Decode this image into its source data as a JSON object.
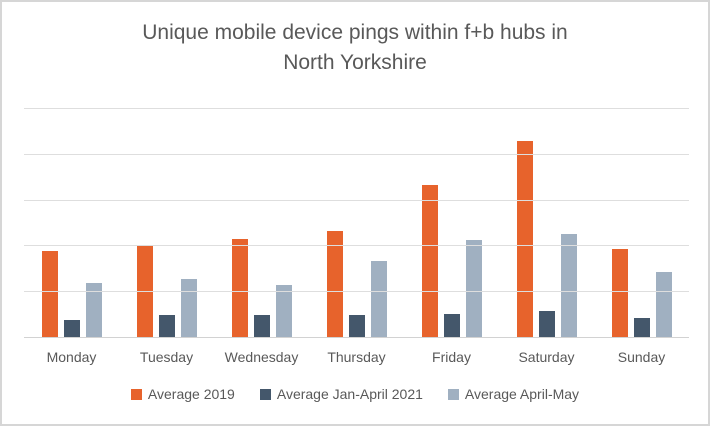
{
  "window": {
    "background": "#FFFFFF",
    "border_color": "#D6D6D6"
  },
  "title": {
    "text": "Unique mobile device pings within f+b hubs in North Yorkshire",
    "lines": [
      "Unique mobile device pings within f+b hubs in",
      "North Yorkshire"
    ],
    "color": "#595959"
  },
  "axis": {
    "label_color": "#595959",
    "gridline_color": "#DEDEDE",
    "axis_line_color": "#D2D2D2"
  },
  "chart_data": {
    "type": "bar",
    "title": "Unique mobile device pings within f+b hubs in North Yorkshire",
    "categories": [
      "Monday",
      "Tuesday",
      "Wednesday",
      "Thursday",
      "Friday",
      "Saturday",
      "Sunday"
    ],
    "series": [
      {
        "name": "Average 2019",
        "color": "#E7632C",
        "values": [
          1.88,
          1.98,
          2.14,
          2.31,
          3.31,
          4.28,
          1.93
        ]
      },
      {
        "name": "Average Jan-April 2021",
        "color": "#44576B",
        "values": [
          0.37,
          0.47,
          0.48,
          0.47,
          0.5,
          0.56,
          0.41
        ]
      },
      {
        "name": "Average April-May",
        "color": "#A0B0C1",
        "values": [
          1.17,
          1.26,
          1.14,
          1.66,
          2.12,
          2.24,
          1.41
        ]
      }
    ],
    "xlabel": "",
    "ylabel": "",
    "ylim": [
      0,
      5
    ],
    "grid_step": 1,
    "grid": "horizontal",
    "y_tick_labels_visible": false,
    "legend_position": "bottom",
    "value_note": "No numeric y-axis labels are shown in the chart; values are estimated in gridline units (1 unit = one horizontal gridline interval)."
  }
}
